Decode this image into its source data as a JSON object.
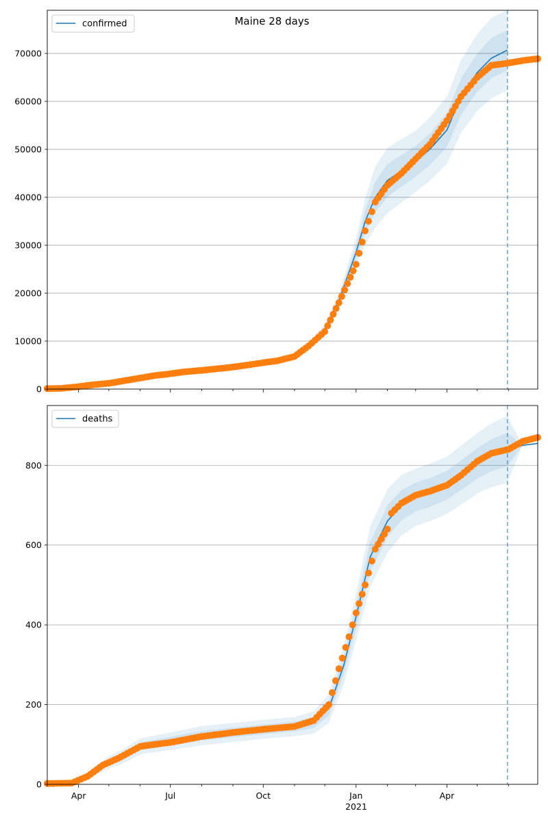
{
  "figure": {
    "title": "Maine 28 days"
  },
  "colors": {
    "model": "#1f77b4",
    "observed": "#ff7f0e",
    "band": "#1f77b4",
    "grid": "#b0b0b0",
    "cutoff": "#1f77b4"
  },
  "chart_data": [
    {
      "type": "line",
      "panel": "confirmed",
      "title": "Maine 28 days",
      "legend": {
        "label": "confirmed",
        "placement": "top-left"
      },
      "grid": "y",
      "x_range": [
        "2020-03-01",
        "2021-06-30"
      ],
      "ylim": [
        0,
        79000
      ],
      "y_ticks": [
        "0",
        "10000",
        "20000",
        "30000",
        "40000",
        "50000",
        "60000",
        "70000"
      ],
      "forecast_end": "2021-05-31",
      "model": {
        "x": [
          "2020-03-01",
          "2020-04-01",
          "2020-05-01",
          "2020-06-01",
          "2020-07-01",
          "2020-08-01",
          "2020-09-01",
          "2020-10-01",
          "2020-10-20",
          "2020-11-01",
          "2020-11-15",
          "2020-12-01",
          "2020-12-15",
          "2021-01-01",
          "2021-01-10",
          "2021-01-20",
          "2021-02-01",
          "2021-02-15",
          "2021-03-01",
          "2021-03-15",
          "2021-04-01",
          "2021-04-15",
          "2021-05-01",
          "2021-05-15",
          "2021-05-31"
        ],
        "y": [
          0,
          500,
          1500,
          2500,
          3400,
          3900,
          4600,
          5400,
          6000,
          6800,
          9000,
          12500,
          18500,
          28500,
          35000,
          40000,
          43500,
          45500,
          47500,
          50000,
          54000,
          61000,
          66000,
          69000,
          70700
        ],
        "band_widths": [
          [
            0,
            0,
            50,
            100,
            150,
            150,
            200,
            200,
            200,
            250,
            350,
            500,
            800,
            1500,
            2400,
            3200,
            3400,
            3300,
            3200,
            3300,
            3500,
            3800,
            4000,
            4200,
            4200
          ],
          [
            0,
            0,
            100,
            200,
            300,
            300,
            400,
            400,
            400,
            500,
            700,
            1000,
            1600,
            3000,
            4800,
            6400,
            6800,
            6600,
            6400,
            6600,
            7000,
            7600,
            8000,
            8400,
            8400
          ]
        ]
      },
      "observed": {
        "x": [
          "2020-03-01",
          "2020-03-15",
          "2020-04-01",
          "2020-04-15",
          "2020-05-01",
          "2020-05-15",
          "2020-06-01",
          "2020-06-15",
          "2020-07-01",
          "2020-07-15",
          "2020-08-01",
          "2020-08-15",
          "2020-09-01",
          "2020-09-15",
          "2020-10-01",
          "2020-10-15",
          "2020-11-01",
          "2020-11-15",
          "2020-12-01",
          "2020-12-15",
          "2021-01-01",
          "2021-01-10",
          "2021-01-20",
          "2021-02-01",
          "2021-02-15",
          "2021-03-01",
          "2021-03-15",
          "2021-04-01",
          "2021-04-15",
          "2021-05-01",
          "2021-05-15",
          "2021-06-01",
          "2021-06-15",
          "2021-06-30"
        ],
        "y": [
          100,
          150,
          500,
          900,
          1200,
          1700,
          2300,
          2800,
          3200,
          3600,
          3900,
          4200,
          4600,
          5000,
          5500,
          5900,
          6800,
          9000,
          12000,
          18000,
          26000,
          33000,
          39000,
          42500,
          45000,
          48000,
          51000,
          56000,
          61000,
          65000,
          67500,
          68000,
          68500,
          68900
        ]
      }
    },
    {
      "type": "line",
      "panel": "deaths",
      "legend": {
        "label": "deaths",
        "placement": "top-left"
      },
      "grid": "y",
      "x_range": [
        "2020-03-01",
        "2021-06-30"
      ],
      "x_ticks": [
        "Apr",
        "Jul",
        "Oct",
        "Jan",
        "Apr"
      ],
      "x_tick_dates": [
        "2020-04-01",
        "2020-07-01",
        "2020-10-01",
        "2021-01-01",
        "2021-04-01"
      ],
      "x_year_label": "2021",
      "ylim": [
        0,
        950
      ],
      "y_ticks": [
        "0",
        "200",
        "400",
        "600",
        "800"
      ],
      "forecast_end": "2021-05-31",
      "model": {
        "x": [
          "2020-03-01",
          "2020-03-25",
          "2020-04-15",
          "2020-05-01",
          "2020-05-15",
          "2020-06-01",
          "2020-07-01",
          "2020-08-01",
          "2020-09-01",
          "2020-10-01",
          "2020-11-01",
          "2020-11-20",
          "2020-12-05",
          "2020-12-20",
          "2021-01-01",
          "2021-01-15",
          "2021-02-01",
          "2021-02-15",
          "2021-03-01",
          "2021-03-15",
          "2021-04-01",
          "2021-04-15",
          "2021-05-01",
          "2021-05-15",
          "2021-05-31",
          "2021-06-15",
          "2021-06-30"
        ],
        "y": [
          0,
          3,
          30,
          55,
          70,
          95,
          108,
          122,
          130,
          138,
          145,
          155,
          190,
          300,
          420,
          570,
          660,
          700,
          720,
          732,
          750,
          775,
          805,
          825,
          840,
          850,
          855
        ],
        "band_widths": [
          [
            0,
            0,
            5,
            8,
            9,
            10,
            11,
            12,
            12,
            12,
            12,
            14,
            18,
            24,
            30,
            38,
            40,
            38,
            36,
            36,
            36,
            37,
            38,
            40,
            42,
            0,
            0
          ],
          [
            0,
            0,
            10,
            16,
            18,
            20,
            22,
            24,
            24,
            24,
            24,
            28,
            36,
            48,
            60,
            76,
            80,
            76,
            72,
            72,
            72,
            74,
            76,
            80,
            84,
            0,
            0
          ]
        ]
      },
      "observed": {
        "x": [
          "2020-03-01",
          "2020-03-25",
          "2020-04-10",
          "2020-04-25",
          "2020-05-10",
          "2020-06-01",
          "2020-06-15",
          "2020-07-01",
          "2020-08-01",
          "2020-09-01",
          "2020-10-01",
          "2020-11-01",
          "2020-11-20",
          "2020-12-05",
          "2020-12-15",
          "2020-12-25",
          "2021-01-01",
          "2021-01-10",
          "2021-01-20",
          "2021-02-01",
          "2021-02-05",
          "2021-02-15",
          "2021-03-01",
          "2021-03-15",
          "2021-04-01",
          "2021-04-15",
          "2021-05-01",
          "2021-05-15",
          "2021-06-01",
          "2021-06-15",
          "2021-06-30"
        ],
        "y": [
          2,
          3,
          20,
          48,
          65,
          95,
          100,
          105,
          120,
          130,
          138,
          145,
          160,
          200,
          290,
          370,
          430,
          500,
          590,
          640,
          680,
          705,
          725,
          735,
          750,
          775,
          810,
          830,
          840,
          860,
          870
        ]
      }
    }
  ]
}
